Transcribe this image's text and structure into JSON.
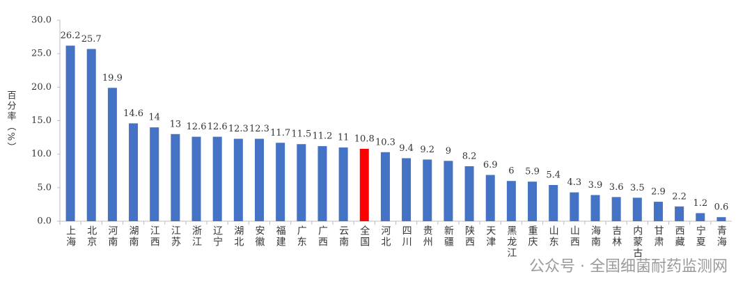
{
  "chart_data": {
    "type": "bar",
    "y_label": "百分率（%）",
    "watermark": "公众号 · 全国细菌耐药监测网",
    "categories": [
      "上海",
      "北京",
      "河南",
      "湖南",
      "江西",
      "江苏",
      "浙江",
      "辽宁",
      "湖北",
      "安徽",
      "福建",
      "广东",
      "广西",
      "云南",
      "全国",
      "河北",
      "四川",
      "贵州",
      "新疆",
      "陕西",
      "天津",
      "黑龙江",
      "重庆",
      "山东",
      "山西",
      "海南",
      "吉林",
      "内蒙古",
      "甘肃",
      "西藏",
      "宁夏",
      "青海"
    ],
    "values": [
      26.2,
      25.7,
      19.9,
      14.6,
      14,
      13,
      12.6,
      12.6,
      12.3,
      12.3,
      11.7,
      11.5,
      11.2,
      11,
      10.8,
      10.3,
      9.4,
      9.2,
      9,
      8.2,
      6.9,
      6,
      5.9,
      5.4,
      4.3,
      3.9,
      3.6,
      3.5,
      2.9,
      2.2,
      1.2,
      0.6
    ],
    "colors": [
      "#4472c4",
      "#4472c4",
      "#4472c4",
      "#4472c4",
      "#4472c4",
      "#4472c4",
      "#4472c4",
      "#4472c4",
      "#4472c4",
      "#4472c4",
      "#4472c4",
      "#4472c4",
      "#4472c4",
      "#4472c4",
      "#ff0000",
      "#4472c4",
      "#4472c4",
      "#4472c4",
      "#4472c4",
      "#4472c4",
      "#4472c4",
      "#4472c4",
      "#4472c4",
      "#4472c4",
      "#4472c4",
      "#4472c4",
      "#4472c4",
      "#4472c4",
      "#4472c4",
      "#4472c4",
      "#4472c4",
      "#4472c4"
    ],
    "ylim": [
      0,
      30
    ],
    "yticks": [
      {
        "value": 0,
        "label": "0.0"
      },
      {
        "value": 5,
        "label": "5.0"
      },
      {
        "value": 10,
        "label": "10.0"
      },
      {
        "value": 15,
        "label": "15.0"
      },
      {
        "value": 20,
        "label": "20.0"
      },
      {
        "value": 25,
        "label": "25.0"
      },
      {
        "value": 30,
        "label": "30.0"
      }
    ],
    "grid": false
  }
}
